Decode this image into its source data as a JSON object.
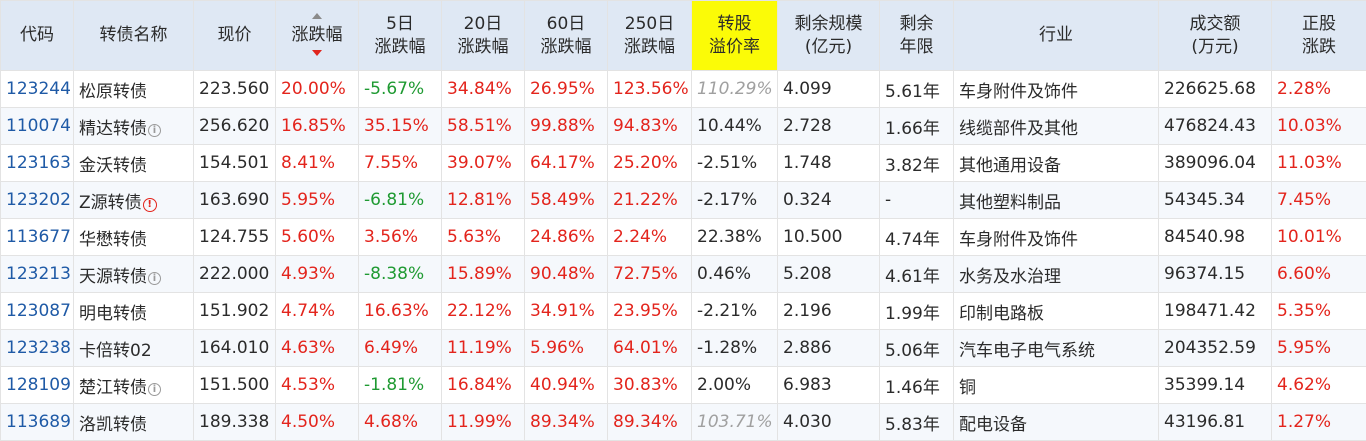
{
  "columns": [
    {
      "label": "代码"
    },
    {
      "label": "转债名称"
    },
    {
      "label": "现价"
    },
    {
      "label": "涨跌幅"
    },
    {
      "label": "5日<br>涨跌幅"
    },
    {
      "label": "20日<br>涨跌幅"
    },
    {
      "label": "60日<br>涨跌幅"
    },
    {
      "label": "250日<br>涨跌幅"
    },
    {
      "label": "转股<br>溢价率"
    },
    {
      "label": "剩余规模<br>(亿元)"
    },
    {
      "label": "剩余<br>年限"
    },
    {
      "label": "行业"
    },
    {
      "label": "成交额<br>(万元)"
    },
    {
      "label": "正股<br>涨跌"
    }
  ],
  "header_labels": {
    "code": "代码",
    "name": "转债名称",
    "price": "现价",
    "change": "涨跌幅",
    "chg5_l1": "5日",
    "chg5_l2": "涨跌幅",
    "chg20_l1": "20日",
    "chg20_l2": "涨跌幅",
    "chg60_l1": "60日",
    "chg60_l2": "涨跌幅",
    "chg250_l1": "250日",
    "chg250_l2": "涨跌幅",
    "premium_l1": "转股",
    "premium_l2": "溢价率",
    "scale_l1": "剩余规模",
    "scale_l2": "(亿元)",
    "years_l1": "剩余",
    "years_l2": "年限",
    "industry": "行业",
    "turnover_l1": "成交额",
    "turnover_l2": "(万元)",
    "stock_l1": "正股",
    "stock_l2": "涨跌"
  },
  "colors": {
    "red": "#e3241c",
    "green": "#1f9a32",
    "code_blue": "#1f5aa6",
    "header_bg": "#dfe8f4",
    "highlight_bg": "#fbfb07"
  },
  "rows": [
    {
      "code": "123244",
      "name": "松原转债",
      "icon": "",
      "price": "223.560",
      "change": "20.00%",
      "chg5": "-5.67%",
      "chg5_dir": "down",
      "chg20": "34.84%",
      "chg60": "26.95%",
      "chg250": "123.56%",
      "premium": "110.29%",
      "premium_style": "gray",
      "scale": "4.099",
      "years": "5.61年",
      "industry": "车身附件及饰件",
      "turnover": "226625.68",
      "stock_chg": "2.28%"
    },
    {
      "code": "110074",
      "name": "精达转债",
      "icon": "info",
      "price": "256.620",
      "change": "16.85%",
      "chg5": "35.15%",
      "chg5_dir": "up",
      "chg20": "58.51%",
      "chg60": "99.88%",
      "chg250": "94.83%",
      "premium": "10.44%",
      "premium_style": "dark",
      "scale": "2.728",
      "years": "1.66年",
      "industry": "线缆部件及其他",
      "turnover": "476824.43",
      "stock_chg": "10.03%"
    },
    {
      "code": "123163",
      "name": "金沃转债",
      "icon": "",
      "price": "154.501",
      "change": "8.41%",
      "chg5": "7.55%",
      "chg5_dir": "up",
      "chg20": "39.07%",
      "chg60": "64.17%",
      "chg250": "25.20%",
      "premium": "-2.51%",
      "premium_style": "dark",
      "scale": "1.748",
      "years": "3.82年",
      "industry": "其他通用设备",
      "turnover": "389096.04",
      "stock_chg": "11.03%"
    },
    {
      "code": "123202",
      "name": "Z源转债",
      "icon": "warn",
      "price": "163.690",
      "change": "5.95%",
      "chg5": "-6.81%",
      "chg5_dir": "down",
      "chg20": "12.81%",
      "chg60": "58.49%",
      "chg250": "21.22%",
      "premium": "-2.17%",
      "premium_style": "dark",
      "scale": "0.324",
      "years": "-",
      "industry": "其他塑料制品",
      "turnover": "54345.34",
      "stock_chg": "7.45%"
    },
    {
      "code": "113677",
      "name": "华懋转债",
      "icon": "",
      "price": "124.755",
      "change": "5.60%",
      "chg5": "3.56%",
      "chg5_dir": "up",
      "chg20": "5.63%",
      "chg60": "24.86%",
      "chg250": "2.24%",
      "premium": "22.38%",
      "premium_style": "dark",
      "scale": "10.500",
      "years": "4.74年",
      "industry": "车身附件及饰件",
      "turnover": "84540.98",
      "stock_chg": "10.01%"
    },
    {
      "code": "123213",
      "name": "天源转债",
      "icon": "info",
      "price": "222.000",
      "change": "4.93%",
      "chg5": "-8.38%",
      "chg5_dir": "down",
      "chg20": "15.89%",
      "chg60": "90.48%",
      "chg250": "72.75%",
      "premium": "0.46%",
      "premium_style": "dark",
      "scale": "5.208",
      "years": "4.61年",
      "industry": "水务及水治理",
      "turnover": "96374.15",
      "stock_chg": "6.60%"
    },
    {
      "code": "123087",
      "name": "明电转债",
      "icon": "",
      "price": "151.902",
      "change": "4.74%",
      "chg5": "16.63%",
      "chg5_dir": "up",
      "chg20": "22.12%",
      "chg60": "34.91%",
      "chg250": "23.95%",
      "premium": "-2.21%",
      "premium_style": "dark",
      "scale": "2.196",
      "years": "1.99年",
      "industry": "印制电路板",
      "turnover": "198471.42",
      "stock_chg": "5.35%"
    },
    {
      "code": "123238",
      "name": "卡倍转02",
      "icon": "",
      "price": "164.010",
      "change": "4.63%",
      "chg5": "6.49%",
      "chg5_dir": "up",
      "chg20": "11.19%",
      "chg60": "5.96%",
      "chg250": "64.01%",
      "premium": "-1.28%",
      "premium_style": "dark",
      "scale": "2.886",
      "years": "5.06年",
      "industry": "汽车电子电气系统",
      "turnover": "204352.59",
      "stock_chg": "5.95%"
    },
    {
      "code": "128109",
      "name": "楚江转债",
      "icon": "info",
      "price": "151.500",
      "change": "4.53%",
      "chg5": "-1.81%",
      "chg5_dir": "down",
      "chg20": "16.84%",
      "chg60": "40.94%",
      "chg250": "30.83%",
      "premium": "2.00%",
      "premium_style": "dark",
      "scale": "6.983",
      "years": "1.46年",
      "industry": "铜",
      "turnover": "35399.14",
      "stock_chg": "4.62%"
    },
    {
      "code": "113689",
      "name": "洛凯转债",
      "icon": "",
      "price": "189.338",
      "change": "4.50%",
      "chg5": "4.68%",
      "chg5_dir": "up",
      "chg20": "11.99%",
      "chg60": "89.34%",
      "chg250": "89.34%",
      "premium": "103.71%",
      "premium_style": "gray",
      "scale": "4.030",
      "years": "5.83年",
      "industry": "配电设备",
      "turnover": "43196.81",
      "stock_chg": "1.27%"
    }
  ]
}
